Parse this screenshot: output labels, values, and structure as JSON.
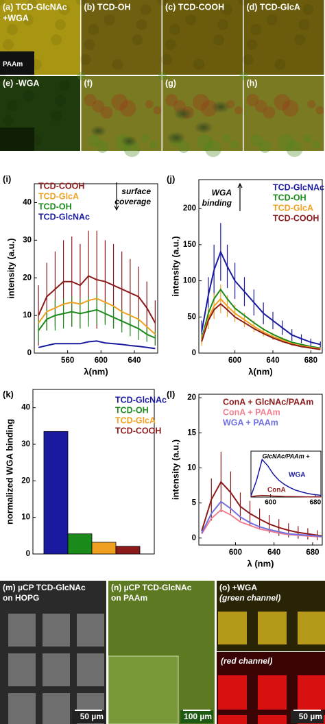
{
  "image_panels": [
    {
      "label_lines": [
        "(a) TCD-GlcNAc",
        "+WGA"
      ],
      "inset": "PAAm"
    },
    {
      "label_lines": [
        "(b) TCD-OH"
      ]
    },
    {
      "label_lines": [
        "(c) TCD-COOH"
      ]
    },
    {
      "label_lines": [
        "(d) TCD-GlcA"
      ]
    },
    {
      "label_lines": [
        "(e) -WGA"
      ]
    },
    {
      "label_lines": [
        "(f)"
      ]
    },
    {
      "label_lines": [
        "(g)"
      ]
    },
    {
      "label_lines": [
        "(h)"
      ]
    }
  ],
  "bottom_panels": [
    {
      "label_lines": [
        "(m) µCP TCD-GlcNAc",
        "on HOPG"
      ],
      "scale_bar": "50 µm"
    },
    {
      "label_lines": [
        "(n) µCP TCD-GlcNAc",
        "on PAAm"
      ],
      "scale_bar": "100 µm"
    },
    {
      "label_lines": [
        "(o) +WGA",
        "(green channel)"
      ],
      "label_lines_2": [
        "(red channel)"
      ],
      "scale_bar": "50 µm"
    }
  ],
  "chart_data": [
    {
      "type": "line",
      "panel_label": "(i)",
      "xlabel": "λ(nm)",
      "ylabel": "intensity (a.u.)",
      "xlim": [
        520,
        668
      ],
      "ylim": [
        0,
        45
      ],
      "xticks": [
        560,
        600,
        640
      ],
      "yticks": [
        0,
        10,
        20,
        30,
        40
      ],
      "legend": "upper left",
      "annotation": [
        "surface",
        "coverage"
      ],
      "x": [
        525,
        535,
        545,
        555,
        565,
        575,
        585,
        595,
        605,
        615,
        625,
        635,
        645,
        655,
        665
      ],
      "series": [
        {
          "name": "TCD-COOH",
          "color": "#8b1a1a",
          "values": [
            10,
            15,
            17,
            19,
            19,
            18,
            20.5,
            19.5,
            19,
            18,
            17,
            16,
            15,
            12,
            8
          ],
          "errors": [
            8,
            9,
            10,
            11,
            12,
            11,
            12,
            13,
            11,
            11,
            10,
            9,
            8,
            7,
            6
          ]
        },
        {
          "name": "TCD-GlcA",
          "color": "#f0a020",
          "values": [
            8,
            11,
            12,
            13,
            13.5,
            13,
            14,
            14.5,
            13.5,
            12.5,
            11,
            10,
            9,
            7,
            5
          ]
        },
        {
          "name": "TCD-OH",
          "color": "#1a8a1a",
          "values": [
            6,
            9,
            10,
            10.5,
            11,
            10.5,
            11,
            11.5,
            10.5,
            9.5,
            8.5,
            7.5,
            6.5,
            5,
            4
          ],
          "errors": [
            3,
            3,
            4,
            4,
            4,
            4,
            4,
            4,
            3,
            3,
            3,
            3,
            3,
            2,
            2
          ]
        },
        {
          "name": "TCD-GlcNAc",
          "color": "#1a1aa0",
          "values": [
            1.5,
            2,
            2.5,
            2.5,
            2.5,
            2.5,
            3,
            3.2,
            2.7,
            2.5,
            2.3,
            2,
            1.8,
            1.5,
            1.2
          ]
        }
      ]
    },
    {
      "type": "line",
      "panel_label": "(j)",
      "xlabel": "λ(nm)",
      "ylabel": "intensity (a.u.)",
      "xlim": [
        562,
        692
      ],
      "ylim": [
        0,
        240
      ],
      "xticks": [
        600,
        640,
        680
      ],
      "yticks": [
        0,
        50,
        100,
        150,
        200
      ],
      "legend": "upper right",
      "annotation": [
        "WGA",
        "binding"
      ],
      "x": [
        565,
        572,
        578,
        585,
        592,
        600,
        610,
        620,
        630,
        640,
        650,
        660,
        670,
        680,
        690
      ],
      "series": [
        {
          "name": "TCD-GlcNAc",
          "color": "#1a1aa0",
          "values": [
            30,
            80,
            115,
            140,
            120,
            100,
            85,
            70,
            55,
            45,
            35,
            25,
            20,
            15,
            12
          ],
          "errors": [
            15,
            25,
            35,
            40,
            30,
            25,
            20,
            18,
            15,
            12,
            10,
            8,
            6,
            5,
            4
          ]
        },
        {
          "name": "TCD-OH",
          "color": "#1a8a1a",
          "values": [
            20,
            55,
            75,
            88,
            75,
            62,
            52,
            42,
            33,
            26,
            20,
            15,
            12,
            9,
            7
          ]
        },
        {
          "name": "TCD-GlcA",
          "color": "#f0a020",
          "values": [
            18,
            48,
            65,
            75,
            65,
            55,
            46,
            37,
            29,
            23,
            18,
            13,
            10,
            8,
            6
          ],
          "errors": [
            8,
            15,
            18,
            20,
            15,
            12,
            10,
            8,
            6,
            5,
            4,
            3,
            2,
            2,
            1
          ]
        },
        {
          "name": "TCD-COOH",
          "color": "#8b1a1a",
          "values": [
            16,
            45,
            60,
            68,
            60,
            50,
            42,
            34,
            27,
            21,
            16,
            12,
            9,
            7,
            5
          ]
        }
      ]
    },
    {
      "type": "bar",
      "panel_label": "(k)",
      "ylabel": "normalized WGA binding",
      "ylim": [
        0,
        45
      ],
      "yticks": [
        0,
        10,
        20,
        30,
        40
      ],
      "legend": "upper right",
      "series": [
        {
          "name": "TCD-GlcNAc",
          "color": "#1a1aa0",
          "values": [
            33.5
          ]
        },
        {
          "name": "TCD-OH",
          "color": "#1a8a1a",
          "values": [
            5.5
          ]
        },
        {
          "name": "TCD-GlcA",
          "color": "#f0a020",
          "values": [
            3.2
          ]
        },
        {
          "name": "TCD-COOH",
          "color": "#8b1a1a",
          "values": [
            2.1
          ]
        }
      ]
    },
    {
      "type": "line",
      "panel_label": "(l)",
      "xlabel": "λ (nm)",
      "ylabel": "intensity (a.u.)",
      "xlim": [
        562,
        690
      ],
      "ylim": [
        -1,
        20.5
      ],
      "xticks": [
        600,
        640,
        680
      ],
      "yticks": [
        0,
        5,
        10,
        15,
        20
      ],
      "legend": "upper right",
      "x": [
        565,
        575,
        585,
        595,
        605,
        615,
        625,
        635,
        645,
        655,
        665,
        675,
        685,
        690
      ],
      "series": [
        {
          "name": "ConA + GlcNAc/PAAm",
          "color": "#8b1a1a",
          "values": [
            1,
            5.5,
            8,
            6.5,
            4.5,
            3.5,
            2.7,
            2,
            1.5,
            1.1,
            0.8,
            0.6,
            0.4,
            0.3
          ],
          "errors": [
            null,
            3,
            4.3,
            3,
            2,
            1.8,
            1.5,
            1.3,
            1.2,
            1,
            0.9,
            0.8,
            0.7,
            null
          ]
        },
        {
          "name": "ConA + PAAm",
          "color": "#f08090",
          "values": [
            0.6,
            2.8,
            4,
            3.3,
            2.3,
            1.8,
            1.3,
            1,
            0.7,
            0.5,
            0.4,
            0.3,
            0.2,
            0.2
          ]
        },
        {
          "name": "WGA + PAAm",
          "color": "#7070e0",
          "values": [
            0.7,
            3.5,
            5.2,
            4.2,
            3,
            2.2,
            1.6,
            1.2,
            0.9,
            0.6,
            0.5,
            0.4,
            0.3,
            0.2
          ]
        }
      ]
    },
    {
      "type": "line",
      "title": "GlcNAc/PAAm +",
      "xlim": [
        565,
        690
      ],
      "ylim": [
        0,
        220
      ],
      "xticks": [
        600,
        680
      ],
      "legend": "inline",
      "x": [
        565,
        575,
        585,
        595,
        605,
        615,
        625,
        635,
        645,
        655,
        665,
        675,
        685,
        690
      ],
      "series": [
        {
          "name": "WGA",
          "color": "#1a1aa0",
          "values": [
            5,
            80,
            180,
            150,
            110,
            80,
            60,
            45,
            33,
            25,
            18,
            13,
            10,
            8
          ]
        },
        {
          "name": "ConA",
          "color": "#8b1a1a",
          "values": [
            2,
            6,
            8,
            7,
            5,
            4,
            3,
            2.5,
            2,
            1.5,
            1,
            1,
            0.8,
            0.6
          ]
        }
      ]
    }
  ]
}
